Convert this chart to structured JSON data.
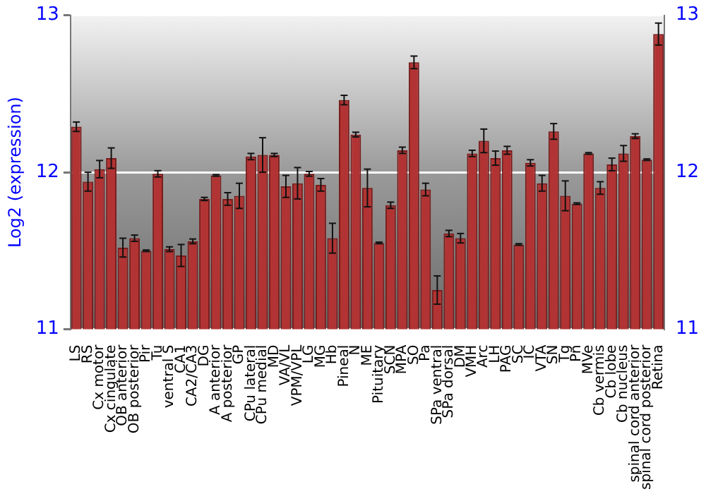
{
  "chart_data": {
    "type": "bar",
    "ylabel": "Log2 (expression)",
    "categories": [
      "LS",
      "RS",
      "Cx motor",
      "Cx cingulate",
      "OB anterior",
      "OB posterior",
      "Pir",
      "Tu",
      "ventral S",
      "CA1",
      "CA2/CA3",
      "DG",
      "A anterior",
      "A posterior",
      "GP",
      "CPu lateral",
      "CPu medial",
      "MD",
      "VA/VL",
      "VPM/VPL",
      "LG",
      "MG",
      "Hb",
      "Pineal",
      "N",
      "ME",
      "Pituitary",
      "SCN",
      "MPA",
      "SO",
      "Pa",
      "SPa ventral",
      "SPa dorsal",
      "DM",
      "VMH",
      "Arc",
      "LH",
      "PAG",
      "SC",
      "IC",
      "VTA",
      "SN",
      "Tg",
      "Pn",
      "MVe",
      "Cb vermis",
      "Cb lobe",
      "Cb nucleus",
      "spinal cord anterior",
      "spinal cord posterior",
      "Retina"
    ],
    "values": [
      12.29,
      11.94,
      12.02,
      12.09,
      11.52,
      11.58,
      11.5,
      11.99,
      11.51,
      11.47,
      11.56,
      11.83,
      11.98,
      11.83,
      11.85,
      12.1,
      12.11,
      12.11,
      11.91,
      11.93,
      11.99,
      11.92,
      11.58,
      12.46,
      12.24,
      11.9,
      11.55,
      11.79,
      12.14,
      12.7,
      11.89,
      11.25,
      11.61,
      11.58,
      12.12,
      12.2,
      12.09,
      12.14,
      11.54,
      12.06,
      11.93,
      12.26,
      11.85,
      11.8,
      12.12,
      11.9,
      12.05,
      12.12,
      12.23,
      12.08,
      12.88
    ],
    "errors": [
      0.03,
      0.06,
      0.055,
      0.065,
      0.06,
      0.02,
      0.005,
      0.02,
      0.015,
      0.07,
      0.015,
      0.01,
      0.005,
      0.04,
      0.08,
      0.02,
      0.11,
      0.01,
      0.07,
      0.1,
      0.015,
      0.04,
      0.095,
      0.03,
      0.015,
      0.12,
      0.005,
      0.02,
      0.02,
      0.04,
      0.04,
      0.09,
      0.02,
      0.03,
      0.02,
      0.075,
      0.045,
      0.025,
      0.005,
      0.02,
      0.05,
      0.05,
      0.095,
      0.005,
      0.005,
      0.04,
      0.04,
      0.05,
      0.015,
      0.005,
      0.07
    ],
    "color": "#b23333",
    "ylim": [
      11,
      13
    ],
    "yticks": [
      11,
      12,
      13
    ],
    "y2lim": [
      11,
      13
    ],
    "y2ticks": [
      11,
      12,
      13
    ],
    "grid": "y"
  }
}
